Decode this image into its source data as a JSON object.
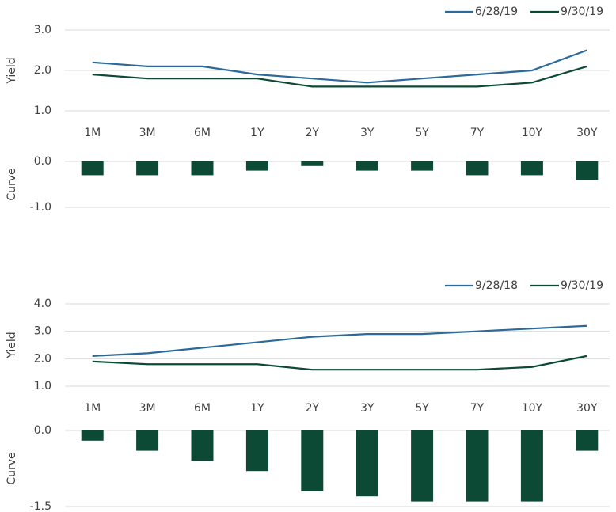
{
  "chart_data": [
    {
      "type": "line",
      "axis_label": "Yield",
      "categories": [
        "1M",
        "3M",
        "6M",
        "1Y",
        "2Y",
        "3Y",
        "5Y",
        "7Y",
        "10Y",
        "30Y"
      ],
      "series": [
        {
          "name": "6/28/19",
          "color": "#2b6a99",
          "values": [
            2.2,
            2.1,
            2.1,
            1.9,
            1.8,
            1.7,
            1.8,
            1.9,
            2.0,
            2.5
          ]
        },
        {
          "name": "9/30/19",
          "color": "#0d4a35",
          "values": [
            1.9,
            1.8,
            1.8,
            1.8,
            1.6,
            1.6,
            1.6,
            1.6,
            1.7,
            2.1
          ]
        }
      ],
      "ylim": [
        1,
        3
      ],
      "yticks": [
        {
          "value": 3,
          "label": "3.0"
        },
        {
          "value": 2,
          "label": "2.0"
        },
        {
          "value": 1,
          "label": "1.0"
        }
      ],
      "grid": true,
      "legend": "top-right"
    },
    {
      "type": "bar",
      "axis_label": "Curve",
      "color": "#0d4a35",
      "values": [
        -0.3,
        -0.3,
        -0.3,
        -0.2,
        -0.1,
        -0.2,
        -0.2,
        -0.3,
        -0.3,
        -0.4
      ],
      "ylim": [
        -1,
        0
      ],
      "yticks": [
        {
          "value": 0,
          "label": "0.0"
        },
        {
          "value": -1,
          "label": "-1.0"
        }
      ],
      "grid": true
    },
    {
      "type": "line",
      "axis_label": "Yield",
      "categories": [
        "1M",
        "3M",
        "6M",
        "1Y",
        "2Y",
        "3Y",
        "5Y",
        "7Y",
        "10Y",
        "30Y"
      ],
      "series": [
        {
          "name": "9/28/18",
          "color": "#2b6a99",
          "values": [
            2.1,
            2.2,
            2.4,
            2.6,
            2.8,
            2.9,
            2.9,
            3.0,
            3.1,
            3.2
          ]
        },
        {
          "name": "9/30/19",
          "color": "#0d4a35",
          "values": [
            1.9,
            1.8,
            1.8,
            1.8,
            1.6,
            1.6,
            1.6,
            1.6,
            1.7,
            2.1
          ]
        }
      ],
      "ylim": [
        1,
        4
      ],
      "yticks": [
        {
          "value": 4,
          "label": "4.0"
        },
        {
          "value": 3,
          "label": "3.0"
        },
        {
          "value": 2,
          "label": "2.0"
        },
        {
          "value": 1,
          "label": "1.0"
        }
      ],
      "grid": true,
      "legend": "top-right"
    },
    {
      "type": "bar",
      "axis_label": "Curve",
      "color": "#0d4a35",
      "values": [
        -0.2,
        -0.4,
        -0.6,
        -0.8,
        -1.2,
        -1.3,
        -1.4,
        -1.4,
        -1.4,
        -0.4
      ],
      "ylim": [
        -1.5,
        0
      ],
      "yticks": [
        {
          "value": 0,
          "label": "0.0"
        },
        {
          "value": -1.5,
          "label": "-1.5"
        }
      ],
      "grid": true
    }
  ]
}
